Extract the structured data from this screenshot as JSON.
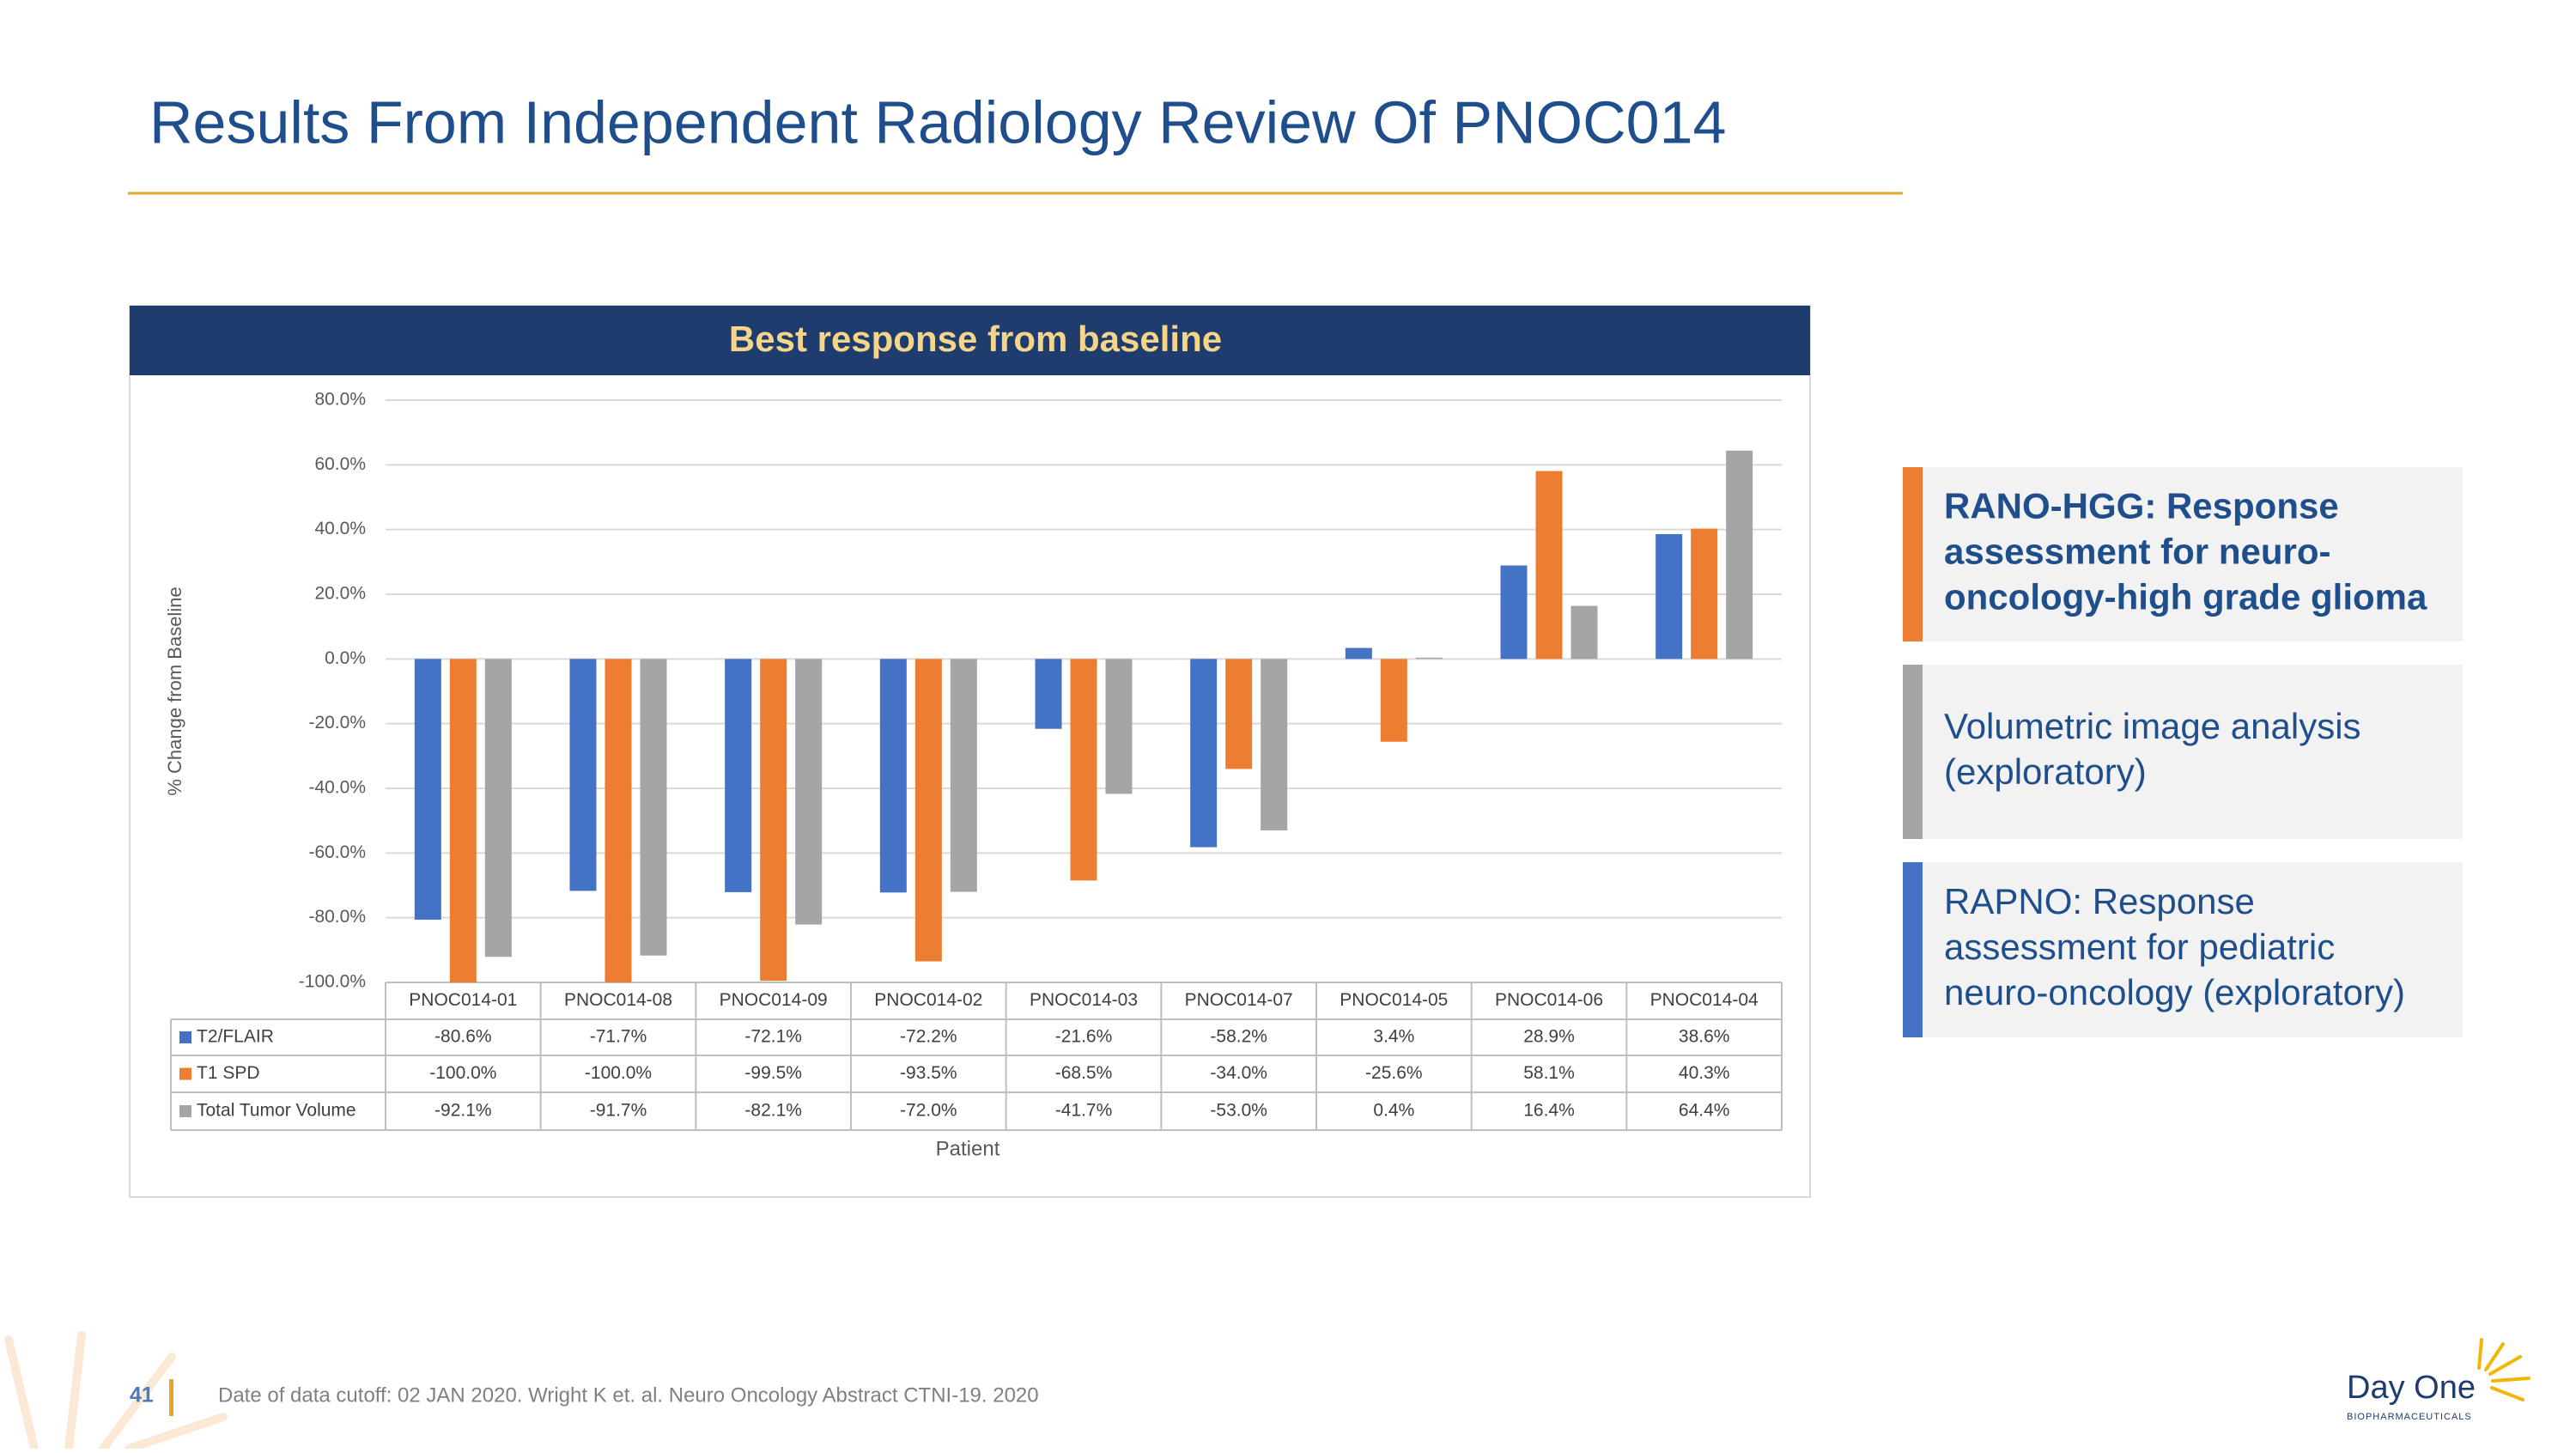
{
  "slide_title": "Results From Independent Radiology Review Of PNOC014",
  "chart_data": {
    "type": "bar",
    "title": "Best response from baseline",
    "y_label": "% Change from Baseline",
    "x_label": "Patient",
    "categories": [
      "PNOC014-01",
      "PNOC014-08",
      "PNOC014-09",
      "PNOC014-02",
      "PNOC014-03",
      "PNOC014-07",
      "PNOC014-05",
      "PNOC014-06",
      "PNOC014-04"
    ],
    "series": [
      {
        "name": "T2/FLAIR",
        "color": "#4472c4",
        "values": [
          -80.6,
          -71.7,
          -72.1,
          -72.2,
          -21.6,
          -58.2,
          3.4,
          28.9,
          38.6
        ],
        "value_labels": [
          "-80.6%",
          "-71.7%",
          "-72.1%",
          "-72.2%",
          "-21.6%",
          "-58.2%",
          "3.4%",
          "28.9%",
          "38.6%"
        ]
      },
      {
        "name": "T1 SPD",
        "color": "#ed7d31",
        "values": [
          -100.0,
          -100.0,
          -99.5,
          -93.5,
          -68.5,
          -34.0,
          -25.6,
          58.1,
          40.3
        ],
        "value_labels": [
          "-100.0%",
          "-100.0%",
          "-99.5%",
          "-93.5%",
          "-68.5%",
          "-34.0%",
          "-25.6%",
          "58.1%",
          "40.3%"
        ]
      },
      {
        "name": "Total Tumor Volume",
        "color": "#a5a5a5",
        "values": [
          -92.1,
          -91.7,
          -82.1,
          -72.0,
          -41.7,
          -53.0,
          0.4,
          16.4,
          64.4
        ],
        "value_labels": [
          "-92.1%",
          "-91.7%",
          "-82.1%",
          "-72.0%",
          "-41.7%",
          "-53.0%",
          "0.4%",
          "16.4%",
          "64.4%"
        ]
      }
    ],
    "ylim": [
      -100,
      80
    ],
    "yticks": [
      {
        "value": -100,
        "label": "-100.0%"
      },
      {
        "value": -80,
        "label": "-80.0%"
      },
      {
        "value": -60,
        "label": "-60.0%"
      },
      {
        "value": -40,
        "label": "-40.0%"
      },
      {
        "value": -20,
        "label": "-20.0%"
      },
      {
        "value": 0,
        "label": "0.0%"
      },
      {
        "value": 20,
        "label": "20.0%"
      },
      {
        "value": 40,
        "label": "40.0%"
      },
      {
        "value": 60,
        "label": "60.0%"
      },
      {
        "value": 80,
        "label": "80.0%"
      }
    ],
    "grid": true
  },
  "legend_boxes": [
    {
      "lines": [
        "RANO-HGG: Response",
        "assessment for neuro-",
        "oncology-high grade glioma"
      ],
      "accent": "#ed7d31",
      "bold": true
    },
    {
      "lines": [
        "Volumetric image analysis",
        "(exploratory)"
      ],
      "accent": "#a5a5a5",
      "bold": false
    },
    {
      "lines": [
        "RAPNO: Response",
        "assessment for pediatric",
        "neuro-oncology (exploratory)"
      ],
      "accent": "#4472c4",
      "bold": false
    }
  ],
  "footer": {
    "page_number": "41",
    "note": "Date of data cutoff:  02 JAN 2020.  Wright K et. al.  Neuro Oncology Abstract CTNI-19. 2020",
    "logo": "Day One",
    "logo_sub": "BIOPHARMACEUTICALS"
  }
}
